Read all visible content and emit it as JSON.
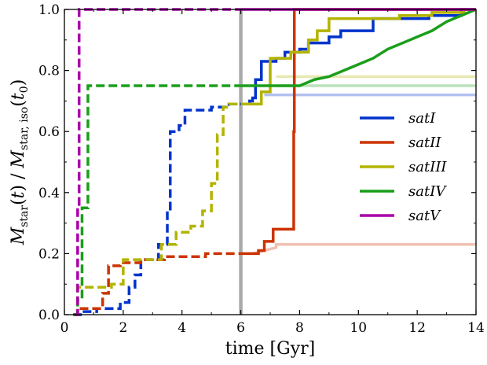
{
  "chart_data": {
    "type": "line",
    "xlabel": "time [Gyr]",
    "ylabel": "M_star(t) / M_star,iso(t_0)",
    "xlim": [
      0,
      14
    ],
    "ylim": [
      0,
      1.0
    ],
    "xticks": [
      0,
      2,
      4,
      6,
      8,
      10,
      12,
      14
    ],
    "yticks": [
      0.0,
      0.2,
      0.4,
      0.6,
      0.8,
      1.0
    ],
    "xtick_labels": [
      "0",
      "2",
      "4",
      "6",
      "8",
      "10",
      "12",
      "14"
    ],
    "ytick_labels": [
      "0.0",
      "0.2",
      "0.4",
      "0.6",
      "0.8",
      "1.0"
    ],
    "legend_position": "center-right",
    "vertical_marker": {
      "x": 6.0,
      "color": "#aaaaaa"
    },
    "series": [
      {
        "name": "satI",
        "color": "#0033cc",
        "pre_infall_dashed": [
          [
            0.3,
            0.0
          ],
          [
            0.6,
            0.0
          ],
          [
            0.6,
            0.01
          ],
          [
            1.1,
            0.01
          ],
          [
            1.1,
            0.02
          ],
          [
            1.9,
            0.02
          ],
          [
            1.9,
            0.04
          ],
          [
            2.2,
            0.04
          ],
          [
            2.2,
            0.09
          ],
          [
            2.4,
            0.09
          ],
          [
            2.4,
            0.13
          ],
          [
            2.6,
            0.13
          ],
          [
            2.6,
            0.18
          ],
          [
            3.2,
            0.18
          ],
          [
            3.2,
            0.23
          ],
          [
            3.5,
            0.23
          ],
          [
            3.5,
            0.34
          ],
          [
            3.6,
            0.34
          ],
          [
            3.6,
            0.6
          ],
          [
            3.9,
            0.6
          ],
          [
            3.9,
            0.62
          ],
          [
            4.1,
            0.62
          ],
          [
            4.1,
            0.67
          ],
          [
            5.0,
            0.67
          ],
          [
            5.0,
            0.68
          ],
          [
            5.6,
            0.68
          ],
          [
            5.6,
            0.69
          ],
          [
            6.0,
            0.69
          ]
        ],
        "post_infall": [
          [
            6.0,
            0.69
          ],
          [
            6.3,
            0.69
          ],
          [
            6.3,
            0.7
          ],
          [
            6.4,
            0.7
          ],
          [
            6.4,
            0.71
          ],
          [
            6.5,
            0.71
          ],
          [
            6.5,
            0.77
          ],
          [
            6.7,
            0.77
          ],
          [
            6.7,
            0.83
          ],
          [
            7.2,
            0.83
          ],
          [
            7.2,
            0.84
          ],
          [
            7.5,
            0.84
          ],
          [
            7.5,
            0.86
          ],
          [
            8.0,
            0.86
          ],
          [
            8.0,
            0.87
          ],
          [
            8.3,
            0.87
          ],
          [
            8.3,
            0.89
          ],
          [
            9.0,
            0.89
          ],
          [
            9.0,
            0.91
          ],
          [
            9.4,
            0.91
          ],
          [
            9.4,
            0.93
          ],
          [
            10.5,
            0.93
          ],
          [
            10.5,
            0.97
          ],
          [
            12.4,
            0.97
          ],
          [
            12.4,
            0.98
          ],
          [
            13.5,
            0.98
          ],
          [
            13.5,
            1.0
          ],
          [
            14.0,
            1.0
          ]
        ],
        "isolated_faint": [
          [
            6.8,
            0.72
          ],
          [
            14.0,
            0.72
          ]
        ]
      },
      {
        "name": "satII",
        "color": "#cc3300",
        "pre_infall_dashed": [
          [
            0.3,
            0.0
          ],
          [
            0.45,
            0.0
          ],
          [
            0.45,
            0.02
          ],
          [
            1.3,
            0.02
          ],
          [
            1.3,
            0.07
          ],
          [
            1.5,
            0.07
          ],
          [
            1.5,
            0.16
          ],
          [
            1.9,
            0.16
          ],
          [
            1.9,
            0.17
          ],
          [
            2.6,
            0.17
          ],
          [
            2.6,
            0.18
          ],
          [
            3.4,
            0.18
          ],
          [
            3.4,
            0.19
          ],
          [
            4.8,
            0.19
          ],
          [
            4.8,
            0.2
          ],
          [
            6.0,
            0.2
          ]
        ],
        "post_infall": [
          [
            6.0,
            0.2
          ],
          [
            6.6,
            0.2
          ],
          [
            6.6,
            0.21
          ],
          [
            6.8,
            0.21
          ],
          [
            6.8,
            0.24
          ],
          [
            7.1,
            0.24
          ],
          [
            7.1,
            0.28
          ],
          [
            7.4,
            0.28
          ],
          [
            7.4,
            0.28
          ],
          [
            7.8,
            0.28
          ],
          [
            7.8,
            0.6
          ],
          [
            7.82,
            0.6
          ],
          [
            7.82,
            1.0
          ],
          [
            14.0,
            1.0
          ]
        ],
        "isolated_faint": [
          [
            6.4,
            0.2
          ],
          [
            6.8,
            0.21
          ],
          [
            7.2,
            0.22
          ],
          [
            7.2,
            0.23
          ],
          [
            14.0,
            0.23
          ]
        ]
      },
      {
        "name": "satIII",
        "color": "#b3b300",
        "pre_infall_dashed": [
          [
            0.35,
            0.0
          ],
          [
            0.45,
            0.0
          ],
          [
            0.45,
            0.09
          ],
          [
            1.6,
            0.09
          ],
          [
            1.6,
            0.1
          ],
          [
            2.0,
            0.1
          ],
          [
            2.0,
            0.18
          ],
          [
            3.3,
            0.18
          ],
          [
            3.3,
            0.23
          ],
          [
            3.8,
            0.23
          ],
          [
            3.8,
            0.27
          ],
          [
            4.3,
            0.27
          ],
          [
            4.3,
            0.29
          ],
          [
            4.7,
            0.29
          ],
          [
            4.7,
            0.34
          ],
          [
            5.0,
            0.34
          ],
          [
            5.0,
            0.43
          ],
          [
            5.2,
            0.43
          ],
          [
            5.2,
            0.59
          ],
          [
            5.4,
            0.59
          ],
          [
            5.4,
            0.68
          ],
          [
            5.6,
            0.68
          ],
          [
            5.6,
            0.69
          ],
          [
            6.0,
            0.69
          ]
        ],
        "post_infall": [
          [
            6.0,
            0.69
          ],
          [
            6.7,
            0.69
          ],
          [
            6.7,
            0.73
          ],
          [
            7.0,
            0.73
          ],
          [
            7.0,
            0.84
          ],
          [
            7.7,
            0.84
          ],
          [
            7.7,
            0.86
          ],
          [
            8.3,
            0.86
          ],
          [
            8.3,
            0.9
          ],
          [
            8.6,
            0.9
          ],
          [
            8.6,
            0.93
          ],
          [
            9.0,
            0.93
          ],
          [
            9.0,
            0.97
          ],
          [
            11.4,
            0.97
          ],
          [
            11.4,
            0.98
          ],
          [
            12.5,
            0.98
          ],
          [
            12.5,
            0.99
          ],
          [
            13.6,
            0.99
          ],
          [
            13.6,
            1.0
          ],
          [
            14.0,
            1.0
          ]
        ],
        "isolated_faint": [
          [
            7.2,
            0.78
          ],
          [
            14.0,
            0.78
          ]
        ]
      },
      {
        "name": "satIV",
        "color": "#1a9e1a",
        "pre_infall_dashed": [
          [
            0.3,
            0.0
          ],
          [
            0.45,
            0.0
          ],
          [
            0.45,
            0.05
          ],
          [
            0.6,
            0.05
          ],
          [
            0.6,
            0.35
          ],
          [
            0.8,
            0.35
          ],
          [
            0.8,
            0.75
          ],
          [
            6.0,
            0.75
          ]
        ],
        "post_infall": [
          [
            6.0,
            0.75
          ],
          [
            8.0,
            0.75
          ],
          [
            8.5,
            0.77
          ],
          [
            9.0,
            0.78
          ],
          [
            9.5,
            0.8
          ],
          [
            10.0,
            0.82
          ],
          [
            10.5,
            0.84
          ],
          [
            11.0,
            0.87
          ],
          [
            11.5,
            0.89
          ],
          [
            12.0,
            0.91
          ],
          [
            12.5,
            0.93
          ],
          [
            13.0,
            0.96
          ],
          [
            13.5,
            0.98
          ],
          [
            14.0,
            1.0
          ]
        ],
        "isolated_faint": [
          [
            7.2,
            0.75
          ],
          [
            14.0,
            0.75
          ]
        ]
      },
      {
        "name": "satV",
        "color": "#aa00aa",
        "pre_infall_dashed": [
          [
            0.35,
            0.0
          ],
          [
            0.45,
            0.0
          ],
          [
            0.45,
            0.35
          ],
          [
            0.5,
            0.35
          ],
          [
            0.5,
            1.0
          ],
          [
            6.0,
            1.0
          ]
        ],
        "post_infall": [
          [
            6.0,
            1.0
          ],
          [
            14.0,
            1.0
          ]
        ],
        "isolated_faint": []
      }
    ]
  }
}
